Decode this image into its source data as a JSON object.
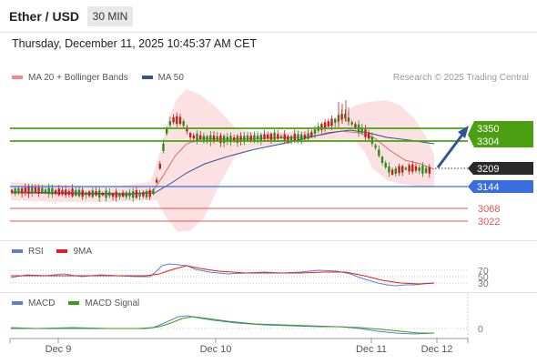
{
  "header": {
    "instrument": "Ether / USD",
    "timeframe": "30 MIN",
    "datetime": "Thursday, December 11, 2025 10:45:37 AM CET"
  },
  "main_legend": {
    "items": [
      {
        "label": "MA 20 + Bollinger Bands",
        "color": "#f08a8a"
      },
      {
        "label": "MA 50",
        "color": "#2f5597"
      }
    ]
  },
  "copyright": "Research © 2025 Trading Central",
  "levels": {
    "resistance_1": "3350",
    "resistance_2": "3304",
    "last_price": "3209",
    "pivot": "3144",
    "support_1": "3068",
    "support_2": "3022"
  },
  "rsi_panel": {
    "legend": [
      {
        "label": "RSI",
        "color": "#5b7fd6"
      },
      {
        "label": "9MA",
        "color": "#e02020"
      }
    ],
    "levels": [
      "70",
      "50",
      "30"
    ]
  },
  "macd_panel": {
    "legend": [
      {
        "label": "MACD",
        "color": "#5b7fd6"
      },
      {
        "label": "MACD Signal",
        "color": "#3a9a1a"
      }
    ],
    "levels": [
      "0"
    ]
  },
  "x_axis": {
    "labels": [
      "Dec 9",
      "Dec 10",
      "Dec 11",
      "Dec 12"
    ]
  },
  "colors": {
    "bull": "#2e8a20",
    "bear": "#c0201a",
    "resistance": "#4aa010",
    "pivot": "#3a6ee0",
    "support": "#e25555",
    "last": "#2a2a2a",
    "arrow": "#2f5597"
  }
}
